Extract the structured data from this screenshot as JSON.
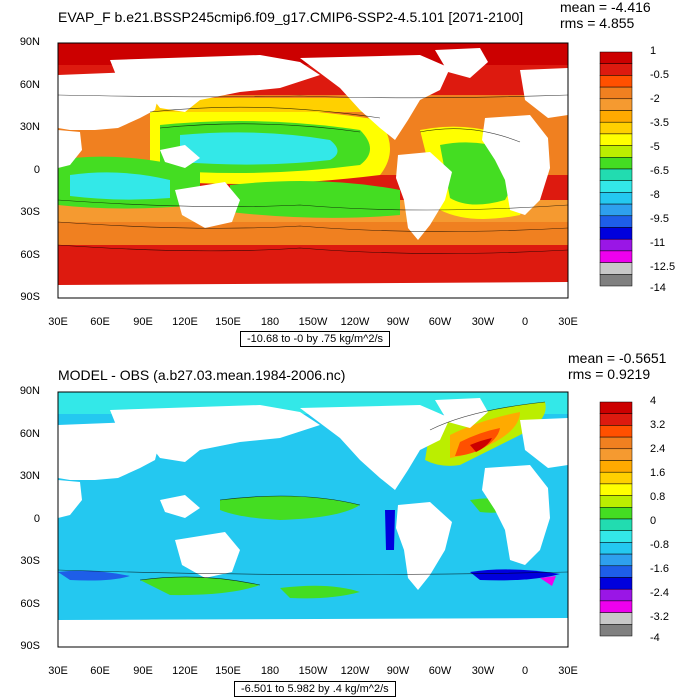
{
  "colors": {
    "land": "#ffffff",
    "contour": "#000000",
    "top_palette": [
      "#808080",
      "#c8c8c8",
      "#ee00ee",
      "#9a16e6",
      "#0000dd",
      "#1e5ee8",
      "#2ea0ee",
      "#24c8f0",
      "#33e8e8",
      "#22dcb0",
      "#44dd22",
      "#bbee00",
      "#ffff00",
      "#ffd000",
      "#ffaa00",
      "#f59a30",
      "#f08020",
      "#ff5000",
      "#dd1a0f",
      "#cc0000"
    ],
    "bottom_palette": [
      "#808080",
      "#c8c8c8",
      "#ee00ee",
      "#9a16e6",
      "#0000dd",
      "#1e5ee8",
      "#2ea0ee",
      "#24c8f0",
      "#33e8e8",
      "#22dcb0",
      "#44dd22",
      "#bbee00",
      "#ffff00",
      "#ffd000",
      "#ffaa00",
      "#f59a30",
      "#f08020",
      "#ff5000",
      "#dd1a0f",
      "#cc0000"
    ]
  },
  "axes": {
    "lat_labels": [
      "90N",
      "60N",
      "30N",
      "0",
      "30S",
      "60S",
      "90S"
    ],
    "lon_labels": [
      "30E",
      "60E",
      "90E",
      "120E",
      "150E",
      "180",
      "150W",
      "120W",
      "90W",
      "60W",
      "30W",
      "0",
      "30E"
    ]
  },
  "top": {
    "title": "EVAP_F b.e21.BSSP245cmip6.f09_g17.CMIP6-SSP2-4.5.101 [2071-2100]",
    "mean": "mean = -4.416",
    "rms": "rms = 4.855",
    "range": "-10.68 to -0 by .75 kg/m^2/s",
    "colorbar_labels": [
      "1",
      "-0.5",
      "-2",
      "-3.5",
      "-5",
      "-6.5",
      "-8",
      "-9.5",
      "-11",
      "-12.5",
      "-14"
    ]
  },
  "bottom": {
    "title": "MODEL - OBS (a.b27.03.mean.1984-2006.nc)",
    "mean": "mean = -0.5651",
    "rms": "rms = 0.9219",
    "range": "-6.501 to 5.982 by .4 kg/m^2/s",
    "colorbar_labels": [
      "4",
      "3.2",
      "2.4",
      "1.6",
      "0.8",
      "0",
      "-0.8",
      "-1.6",
      "-2.4",
      "-3.2",
      "-4"
    ]
  }
}
